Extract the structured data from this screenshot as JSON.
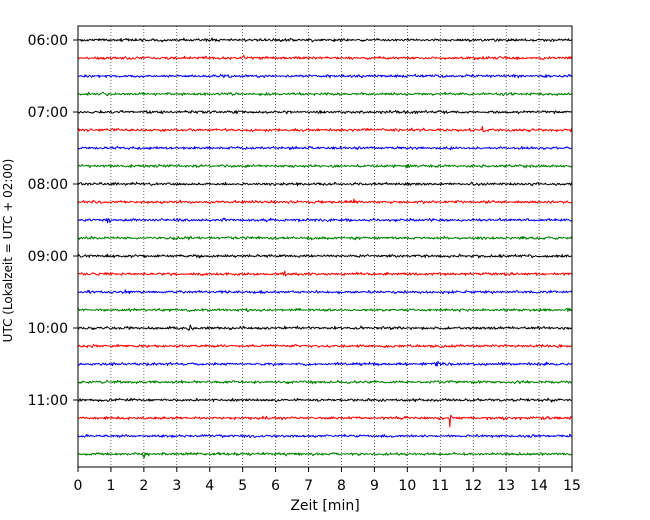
{
  "chart_data": {
    "type": "line",
    "title": "",
    "xlabel": "Zeit  [min]",
    "ylabel": "UTC (Lokalzeit = UTC + 02:00)",
    "xlim": [
      0,
      15
    ],
    "x_ticks": [
      "0",
      "1",
      "2",
      "3",
      "4",
      "5",
      "6",
      "7",
      "8",
      "9",
      "10",
      "11",
      "12",
      "13",
      "14",
      "15"
    ],
    "y_tick_labels": [
      "06:00",
      "07:00",
      "08:00",
      "09:00",
      "10:00",
      "11:00"
    ],
    "grid": "vertical dotted",
    "trace_start": "06:00",
    "trace_interval_minutes": 15,
    "trace_count": 24,
    "trace_colors": [
      "#000000",
      "#ff0000",
      "#0000ff",
      "#008000"
    ],
    "events": [
      {
        "trace": 1,
        "minute": 5.0,
        "amplitude": 1.3
      },
      {
        "trace": 5,
        "minute": 12.3,
        "amplitude": 1.6
      },
      {
        "trace": 5,
        "minute": 15.0,
        "amplitude": 1.4
      },
      {
        "trace": 7,
        "minute": 10.0,
        "amplitude": 1.3
      },
      {
        "trace": 9,
        "minute": 8.4,
        "amplitude": 1.3
      },
      {
        "trace": 10,
        "minute": 0.9,
        "amplitude": 1.6
      },
      {
        "trace": 13,
        "minute": 6.3,
        "amplitude": 1.3
      },
      {
        "trace": 14,
        "minute": 1.4,
        "amplitude": 1.3
      },
      {
        "trace": 16,
        "minute": 3.4,
        "amplitude": 1.4
      },
      {
        "trace": 18,
        "minute": 10.9,
        "amplitude": 1.3
      },
      {
        "trace": 20,
        "minute": 14.4,
        "amplitude": 1.4
      },
      {
        "trace": 21,
        "minute": 11.3,
        "amplitude": 1.9
      },
      {
        "trace": 23,
        "minute": 2.0,
        "amplitude": 1.4
      }
    ]
  }
}
